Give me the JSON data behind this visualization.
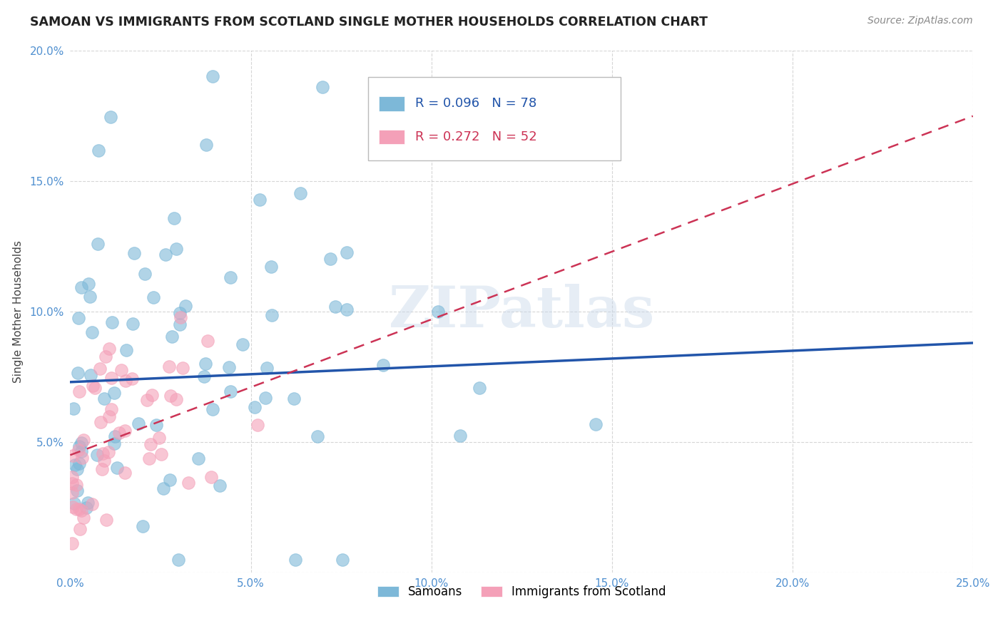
{
  "title": "SAMOAN VS IMMIGRANTS FROM SCOTLAND SINGLE MOTHER HOUSEHOLDS CORRELATION CHART",
  "source": "Source: ZipAtlas.com",
  "ylabel": "Single Mother Households",
  "xlim": [
    0.0,
    0.25
  ],
  "ylim": [
    0.0,
    0.2
  ],
  "xtick_labels": [
    "0.0%",
    "5.0%",
    "10.0%",
    "15.0%",
    "20.0%",
    "25.0%"
  ],
  "ytick_labels": [
    "",
    "5.0%",
    "10.0%",
    "15.0%",
    "20.0%"
  ],
  "legend_r_blue": "0.096",
  "legend_n_blue": "78",
  "legend_r_pink": "0.272",
  "legend_n_pink": "52",
  "blue_color": "#7db8d8",
  "pink_color": "#f4a0b8",
  "blue_line_color": "#2255aa",
  "pink_line_color": "#cc3355",
  "watermark": "ZIPatlas",
  "background_color": "#ffffff",
  "tick_color": "#5090d0",
  "blue_line_intercept": 0.073,
  "blue_line_slope": 0.06,
  "pink_line_intercept": 0.045,
  "pink_line_slope": 0.52
}
